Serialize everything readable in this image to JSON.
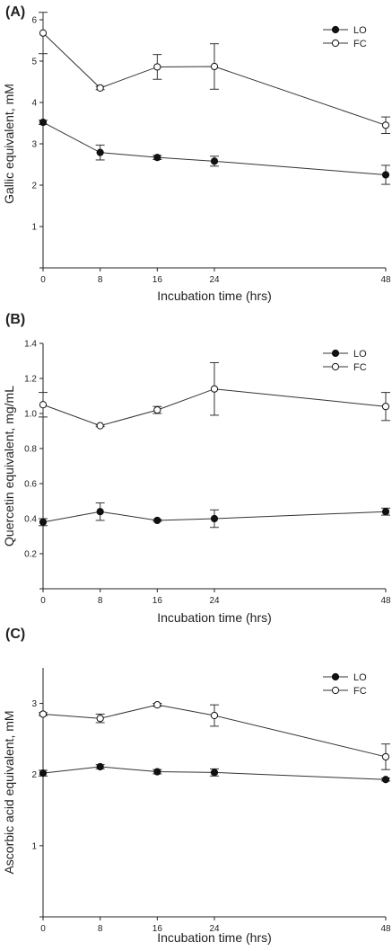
{
  "chart_data": [
    {
      "type": "line",
      "panel_label": "(A)",
      "xlabel": "Incubation time (hrs)",
      "ylabel": "Gallic equivalent, mM",
      "x": [
        0,
        8,
        16,
        24,
        48
      ],
      "xlim": [
        0,
        48
      ],
      "ylim": [
        0,
        6
      ],
      "yticks": [
        0,
        1,
        2,
        3,
        4,
        5,
        6
      ],
      "ytick_labels": [
        "",
        "1",
        "2",
        "3",
        "4",
        "5",
        "6"
      ],
      "legend_position": "top-right",
      "series": [
        {
          "name": "LO",
          "marker": "filled-circle",
          "values": [
            3.52,
            2.79,
            2.67,
            2.58,
            2.25
          ],
          "errors": [
            0.05,
            0.18,
            0.05,
            0.12,
            0.23
          ]
        },
        {
          "name": "FC",
          "marker": "open-circle",
          "values": [
            5.68,
            4.35,
            4.86,
            4.87,
            3.45
          ],
          "errors": [
            0.5,
            0.04,
            0.3,
            0.55,
            0.2
          ]
        }
      ]
    },
    {
      "type": "line",
      "panel_label": "(B)",
      "xlabel": "Incubation time (hrs)",
      "ylabel": "Quercetin equivalent, mg/mL",
      "x": [
        0,
        8,
        16,
        24,
        48
      ],
      "xlim": [
        0,
        48
      ],
      "ylim": [
        0,
        1.4
      ],
      "yticks": [
        0,
        0.2,
        0.4,
        0.6,
        0.8,
        1.0,
        1.2,
        1.4
      ],
      "ytick_labels": [
        "",
        "0.2",
        "0.4",
        "0.6",
        "0.8",
        "1.0",
        "1.2",
        "1.4"
      ],
      "legend_position": "top-right",
      "series": [
        {
          "name": "LO",
          "marker": "filled-circle",
          "values": [
            0.38,
            0.44,
            0.39,
            0.4,
            0.44
          ],
          "errors": [
            0.02,
            0.05,
            0.005,
            0.05,
            0.02
          ]
        },
        {
          "name": "FC",
          "marker": "open-circle",
          "values": [
            1.05,
            0.93,
            1.02,
            1.14,
            1.04
          ],
          "errors": [
            0.07,
            0.005,
            0.02,
            0.15,
            0.08
          ]
        }
      ]
    },
    {
      "type": "line",
      "panel_label": "(C)",
      "xlabel": "Incubation time (hrs)",
      "ylabel": "Ascorbic acid equivalent, mM",
      "x": [
        0,
        8,
        16,
        24,
        48
      ],
      "xlim": [
        0,
        48
      ],
      "ylim": [
        0,
        3.5
      ],
      "yticks": [
        0,
        1,
        2,
        3
      ],
      "ytick_labels": [
        "",
        "1",
        "2",
        "3"
      ],
      "legend_position": "top-right",
      "series": [
        {
          "name": "LO",
          "marker": "filled-circle",
          "values": [
            2.02,
            2.11,
            2.04,
            2.03,
            1.93
          ],
          "errors": [
            0.04,
            0.03,
            0.03,
            0.05,
            0.02
          ]
        },
        {
          "name": "FC",
          "marker": "open-circle",
          "values": [
            2.85,
            2.79,
            2.98,
            2.83,
            2.25
          ],
          "errors": [
            0.02,
            0.06,
            0.02,
            0.15,
            0.18
          ]
        }
      ]
    }
  ]
}
